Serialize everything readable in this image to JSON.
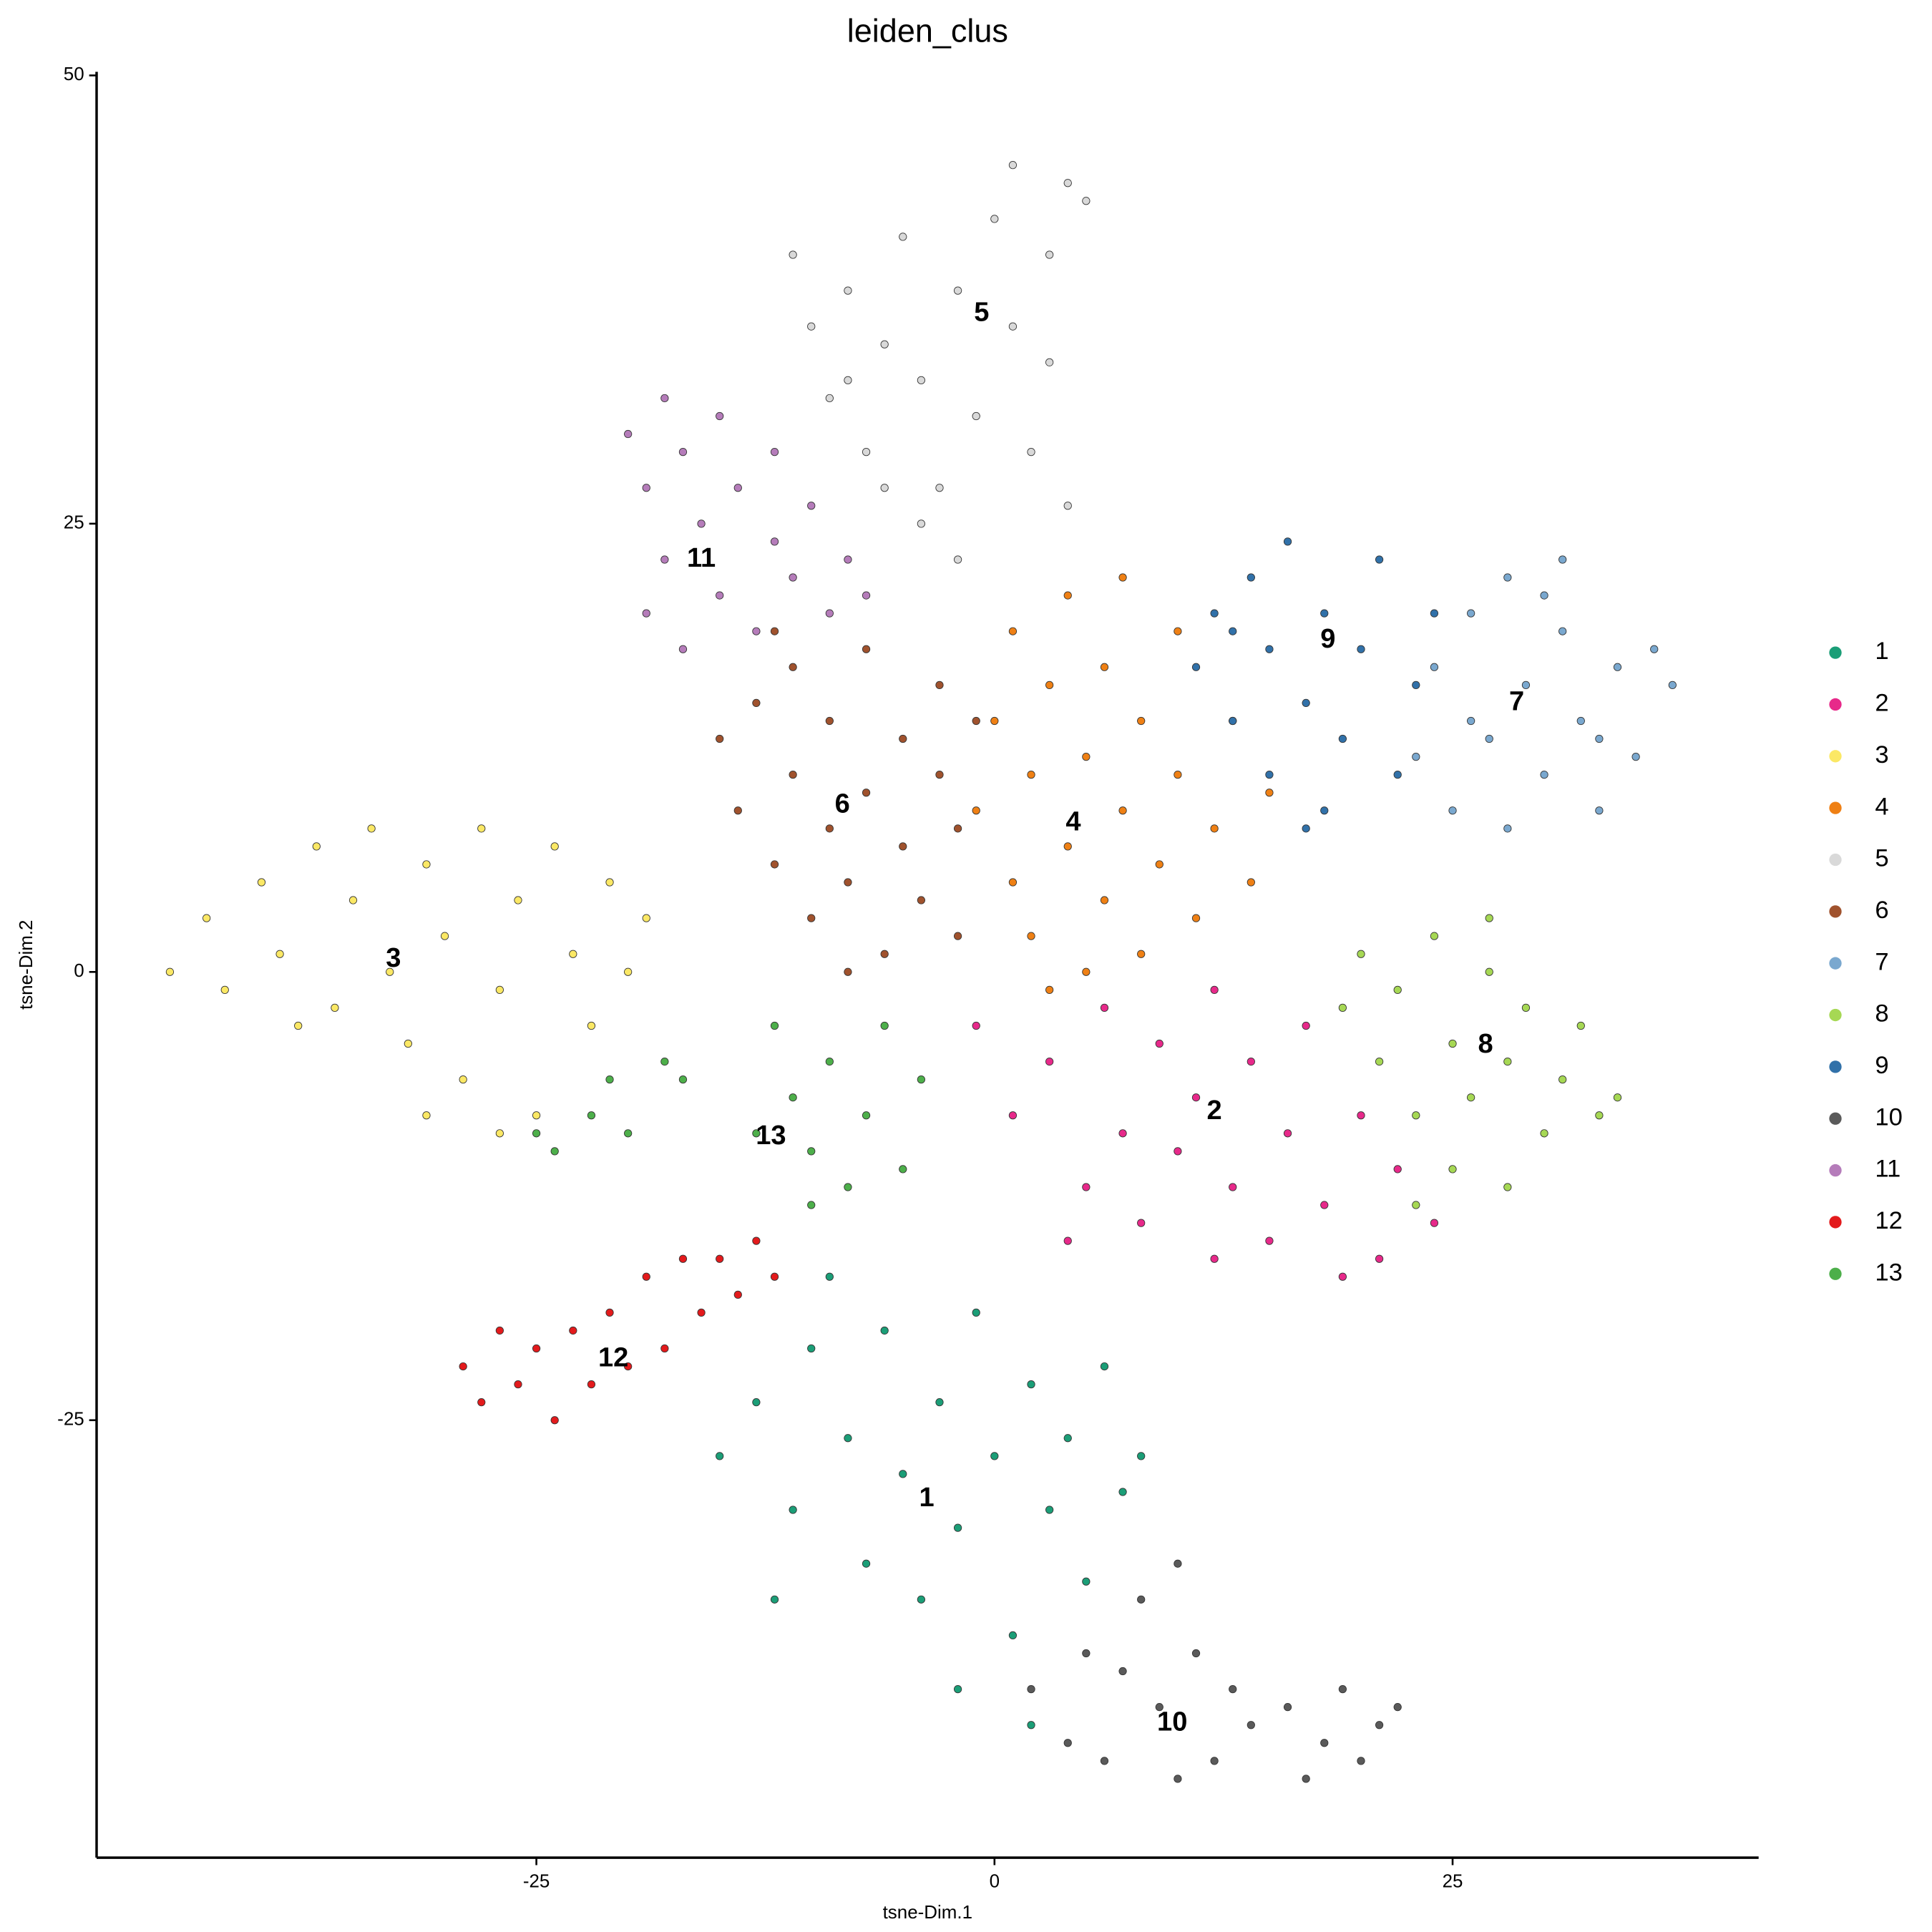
{
  "chart_data": {
    "type": "scatter",
    "title": "leiden_clus",
    "x_label": "tsne-Dim.1",
    "y_label": "tsne-Dim.2",
    "xlim": [
      -49,
      41.7
    ],
    "ylim": [
      -49.4,
      50.2
    ],
    "xticks": [
      -25,
      0,
      25
    ],
    "yticks": [
      -25,
      0,
      25,
      50
    ],
    "grid": false,
    "legend": "right",
    "series": [
      {
        "name": "1",
        "color": "#1b9e77",
        "centroid_x": -3.7,
        "centroid_y": -29.4,
        "x": [
          -15,
          -13,
          -11,
          -10,
          -8,
          -7,
          -6,
          -5,
          -4,
          -3,
          -2,
          -1,
          0,
          1,
          2,
          3,
          4,
          5,
          6,
          7,
          8,
          -9,
          -2,
          2,
          -12
        ],
        "y": [
          -27,
          -24,
          -30,
          -21,
          -26,
          -33,
          -20,
          -28,
          -35,
          -24,
          -31,
          -19,
          -27,
          -37,
          -23,
          -30,
          -26,
          -34,
          -22,
          -29,
          -27,
          -17,
          -40,
          -42,
          -35
        ]
      },
      {
        "name": "2",
        "color": "#e7298a",
        "centroid_x": 12,
        "centroid_y": -7.8,
        "x": [
          -1,
          1,
          3,
          5,
          6,
          7,
          8,
          9,
          10,
          11,
          12,
          13,
          14,
          15,
          16,
          17,
          18,
          19,
          20,
          21,
          22,
          24,
          4,
          12
        ],
        "y": [
          -3,
          -8,
          -5,
          -12,
          -2,
          -9,
          -14,
          -4,
          -10,
          -7,
          -1,
          -12,
          -5,
          -15,
          -9,
          -3,
          -13,
          -17,
          -8,
          -16,
          -11,
          -14,
          -15,
          -16
        ]
      },
      {
        "name": "3",
        "color": "#fbe865",
        "centroid_x": -32.8,
        "centroid_y": 0.7,
        "x": [
          -45,
          -43,
          -42,
          -40,
          -39,
          -37,
          -36,
          -35,
          -34,
          -33,
          -32,
          -31,
          -30,
          -29,
          -28,
          -27,
          -26,
          -25,
          -24,
          -23,
          -22,
          -21,
          -20,
          -19,
          -27,
          -31,
          -38
        ],
        "y": [
          0,
          3,
          -1,
          5,
          1,
          7,
          -2,
          4,
          8,
          0,
          -4,
          6,
          2,
          -6,
          8,
          -1,
          4,
          -8,
          7,
          1,
          -3,
          5,
          0,
          3,
          -9,
          -8,
          -3
        ]
      },
      {
        "name": "4",
        "color": "#ef8014",
        "centroid_x": 4.3,
        "centroid_y": 8.3,
        "x": [
          -1,
          0,
          1,
          1,
          2,
          2,
          3,
          4,
          4,
          5,
          5,
          6,
          6,
          7,
          8,
          8,
          9,
          10,
          10,
          11,
          12,
          13,
          14,
          15,
          7,
          3
        ],
        "y": [
          9,
          14,
          5,
          19,
          2,
          11,
          16,
          7,
          21,
          0,
          12,
          4,
          17,
          9,
          1,
          14,
          6,
          19,
          11,
          3,
          8,
          14,
          5,
          10,
          22,
          -1
        ]
      },
      {
        "name": "5",
        "color": "#d9d9d9",
        "centroid_x": -0.7,
        "centroid_y": 36.7,
        "x": [
          -11,
          -10,
          -9,
          -8,
          -7,
          -6,
          -5,
          -4,
          -3,
          -2,
          -1,
          0,
          1,
          2,
          3,
          4,
          5,
          3,
          -4,
          -6,
          -2,
          4,
          1,
          -8
        ],
        "y": [
          40,
          36,
          32,
          38,
          29,
          35,
          41,
          33,
          27,
          38,
          31,
          42,
          36,
          29,
          40,
          44,
          43,
          34,
          25,
          27,
          23,
          26,
          45,
          33
        ]
      },
      {
        "name": "6",
        "color": "#a0522d",
        "centroid_x": -8.3,
        "centroid_y": 9.3,
        "x": [
          -15,
          -14,
          -13,
          -12,
          -11,
          -11,
          -10,
          -9,
          -9,
          -8,
          -7,
          -7,
          -6,
          -5,
          -5,
          -4,
          -3,
          -3,
          -2,
          -2,
          -1,
          -8,
          -12
        ],
        "y": [
          13,
          9,
          15,
          6,
          11,
          17,
          3,
          8,
          14,
          5,
          10,
          18,
          1,
          7,
          13,
          4,
          11,
          16,
          8,
          2,
          14,
          0,
          19
        ]
      },
      {
        "name": "7",
        "color": "#7aa8cf",
        "centroid_x": 28.5,
        "centroid_y": 15,
        "x": [
          23,
          24,
          25,
          26,
          27,
          28,
          28,
          29,
          30,
          31,
          31,
          32,
          33,
          34,
          35,
          36,
          37,
          26,
          30,
          33
        ],
        "y": [
          12,
          17,
          9,
          20,
          13,
          8,
          22,
          16,
          11,
          19,
          23,
          14,
          9,
          17,
          12,
          18,
          16,
          14,
          21,
          13
        ]
      },
      {
        "name": "8",
        "color": "#a6d854",
        "centroid_x": 26.8,
        "centroid_y": -4.1,
        "x": [
          19,
          20,
          21,
          22,
          23,
          24,
          25,
          25,
          26,
          27,
          28,
          28,
          29,
          30,
          31,
          32,
          33,
          34,
          23,
          27
        ],
        "y": [
          -2,
          1,
          -5,
          -1,
          -8,
          2,
          -4,
          -11,
          -7,
          0,
          -5,
          -12,
          -2,
          -9,
          -6,
          -3,
          -8,
          -7,
          -13,
          3
        ]
      },
      {
        "name": "9",
        "color": "#3171a9",
        "centroid_x": 18.2,
        "centroid_y": 18.5,
        "x": [
          11,
          12,
          13,
          14,
          15,
          15,
          16,
          17,
          18,
          18,
          19,
          20,
          21,
          22,
          23,
          24,
          17,
          13
        ],
        "y": [
          17,
          20,
          14,
          22,
          11,
          18,
          24,
          15,
          20,
          9,
          13,
          18,
          23,
          11,
          16,
          20,
          8,
          19
        ]
      },
      {
        "name": "10",
        "color": "#5a5a5a",
        "centroid_x": 9.7,
        "centroid_y": -41.9,
        "x": [
          2,
          4,
          5,
          6,
          8,
          9,
          10,
          11,
          12,
          13,
          14,
          16,
          17,
          18,
          19,
          20,
          21,
          22,
          10,
          7
        ],
        "y": [
          -40,
          -43,
          -38,
          -44,
          -35,
          -41,
          -33,
          -38,
          -44,
          -40,
          -42,
          -41,
          -45,
          -43,
          -40,
          -44,
          -42,
          -41,
          -45,
          -39
        ]
      },
      {
        "name": "11",
        "color": "#b57cba",
        "centroid_x": -16,
        "centroid_y": 23,
        "x": [
          -20,
          -19,
          -18,
          -18,
          -17,
          -17,
          -16,
          -15,
          -15,
          -14,
          -13,
          -12,
          -12,
          -11,
          -10,
          -9,
          -8,
          -7,
          -19
        ],
        "y": [
          30,
          27,
          32,
          23,
          29,
          18,
          25,
          31,
          21,
          27,
          19,
          24,
          29,
          22,
          26,
          20,
          23,
          21,
          20
        ]
      },
      {
        "name": "12",
        "color": "#e31a1c",
        "centroid_x": -20.8,
        "centroid_y": -21.6,
        "x": [
          -29,
          -28,
          -27,
          -26,
          -25,
          -24,
          -23,
          -22,
          -21,
          -20,
          -19,
          -18,
          -17,
          -16,
          -15,
          -14,
          -13,
          -12
        ],
        "y": [
          -22,
          -24,
          -20,
          -23,
          -21,
          -25,
          -20,
          -23,
          -19,
          -22,
          -17,
          -21,
          -16,
          -19,
          -16,
          -18,
          -15,
          -17
        ]
      },
      {
        "name": "13",
        "color": "#4daf4a",
        "centroid_x": -12.2,
        "centroid_y": -9.2,
        "x": [
          -25,
          -24,
          -22,
          -21,
          -20,
          -18,
          -17,
          -12,
          -11,
          -10,
          -9,
          -8,
          -7,
          -6,
          -5,
          -4,
          -10,
          -13
        ],
        "y": [
          -9,
          -10,
          -8,
          -6,
          -9,
          -5,
          -6,
          -3,
          -7,
          -10,
          -5,
          -12,
          -8,
          -3,
          -11,
          -6,
          -13,
          -9
        ]
      }
    ]
  }
}
